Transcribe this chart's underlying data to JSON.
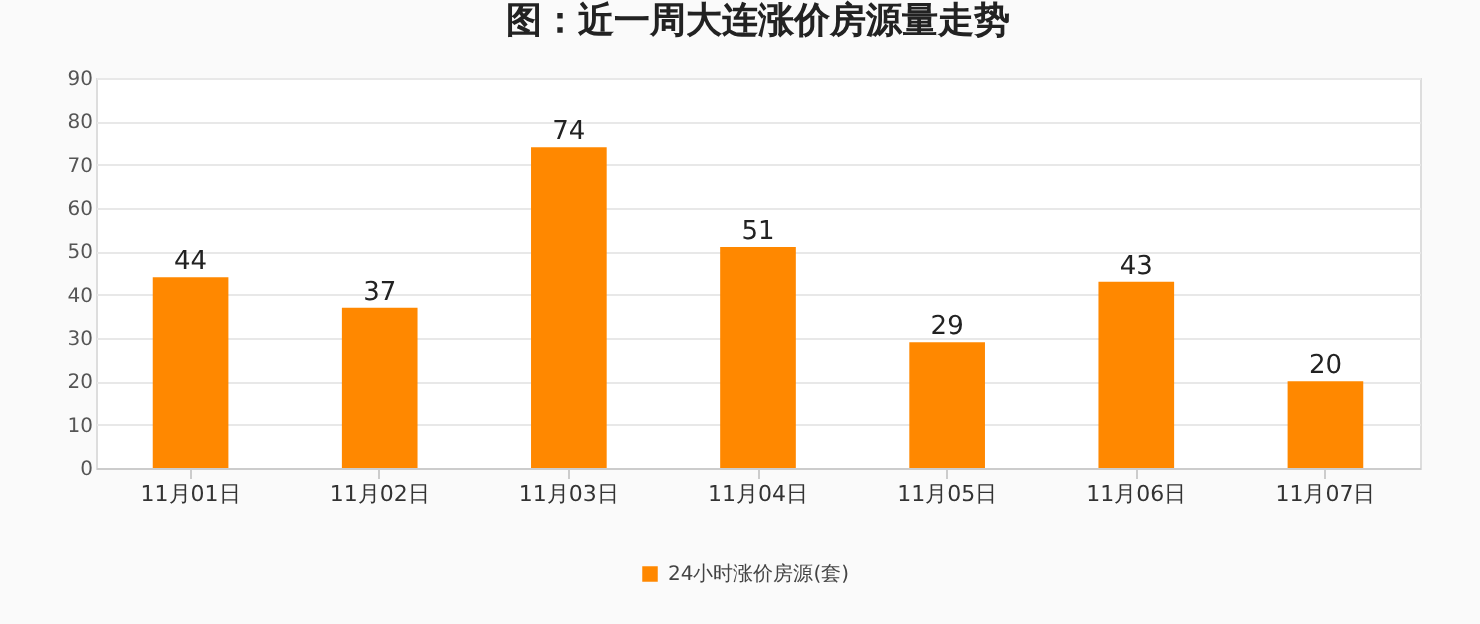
{
  "chart_data": {
    "type": "bar",
    "title": "图：近一周大连涨价房源量走势",
    "categories": [
      "11月01日",
      "11月02日",
      "11月03日",
      "11月04日",
      "11月05日",
      "11月06日",
      "11月07日"
    ],
    "series": [
      {
        "name": "24小时涨价房源(套)",
        "color": "#ff8800",
        "values": [
          44,
          37,
          74,
          51,
          29,
          43,
          20
        ]
      }
    ],
    "ylim": [
      0,
      90
    ],
    "yticks": [
      0,
      10,
      20,
      30,
      40,
      50,
      60,
      70,
      80,
      90
    ],
    "grid": "y",
    "legend": "bottom",
    "data_labels": true
  }
}
